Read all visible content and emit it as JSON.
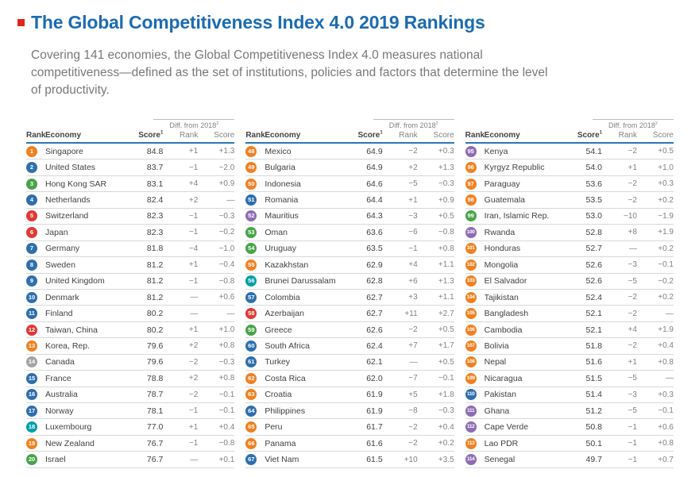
{
  "page": {
    "title": "The Global Competitiveness Index 4.0 2019 Rankings",
    "subtitle": "Covering 141 economies, the Global Competitiveness Index 4.0 measures national competitiveness—defined as the set of institutions, policies and factors that determine the level of productivity.",
    "title_color": "#1c6bb0",
    "logo_color": "#e2231a"
  },
  "table": {
    "diff_label": "Diff. from 2018",
    "diff_sup": "2",
    "columns": {
      "rank": "Rank",
      "economy": "Economy",
      "score": "Score",
      "score_sup": "1",
      "diff_rank": "Rank",
      "diff_score": "Score"
    }
  },
  "region_colors": {
    "blue": "#2e6fad",
    "red": "#df3a35",
    "orange": "#f08122",
    "green": "#4aa349",
    "teal": "#00a0a8",
    "purple": "#8d6cb4",
    "gray": "#a2a4a6"
  },
  "tables": [
    {
      "rows": [
        {
          "rank": "1",
          "economy": "Singapore",
          "score": "84.8",
          "diff_rank": "+1",
          "diff_score": "+1.3",
          "color": "orange"
        },
        {
          "rank": "2",
          "economy": "United States",
          "score": "83.7",
          "diff_rank": "−1",
          "diff_score": "−2.0",
          "color": "blue"
        },
        {
          "rank": "3",
          "economy": "Hong Kong SAR",
          "score": "83.1",
          "diff_rank": "+4",
          "diff_score": "+0.9",
          "color": "green"
        },
        {
          "rank": "4",
          "economy": "Netherlands",
          "score": "82.4",
          "diff_rank": "+2",
          "diff_score": "—",
          "color": "blue"
        },
        {
          "rank": "5",
          "economy": "Switzerland",
          "score": "82.3",
          "diff_rank": "−1",
          "diff_score": "−0.3",
          "color": "red"
        },
        {
          "rank": "6",
          "economy": "Japan",
          "score": "82.3",
          "diff_rank": "−1",
          "diff_score": "−0.2",
          "color": "red"
        },
        {
          "rank": "7",
          "economy": "Germany",
          "score": "81.8",
          "diff_rank": "−4",
          "diff_score": "−1.0",
          "color": "blue"
        },
        {
          "rank": "8",
          "economy": "Sweden",
          "score": "81.2",
          "diff_rank": "+1",
          "diff_score": "−0.4",
          "color": "blue"
        },
        {
          "rank": "9",
          "economy": "United Kingdom",
          "score": "81.2",
          "diff_rank": "−1",
          "diff_score": "−0.8",
          "color": "blue"
        },
        {
          "rank": "10",
          "economy": "Denmark",
          "score": "81.2",
          "diff_rank": "—",
          "diff_score": "+0.6",
          "color": "blue"
        },
        {
          "rank": "11",
          "economy": "Finland",
          "score": "80.2",
          "diff_rank": "—",
          "diff_score": "—",
          "color": "blue"
        },
        {
          "rank": "12",
          "economy": "Taiwan, China",
          "score": "80.2",
          "diff_rank": "+1",
          "diff_score": "+1.0",
          "color": "red"
        },
        {
          "rank": "13",
          "economy": "Korea, Rep.",
          "score": "79.6",
          "diff_rank": "+2",
          "diff_score": "+0.8",
          "color": "orange"
        },
        {
          "rank": "14",
          "economy": "Canada",
          "score": "79.6",
          "diff_rank": "−2",
          "diff_score": "−0.3",
          "color": "gray"
        },
        {
          "rank": "15",
          "economy": "France",
          "score": "78.8",
          "diff_rank": "+2",
          "diff_score": "+0.8",
          "color": "blue"
        },
        {
          "rank": "16",
          "economy": "Australia",
          "score": "78.7",
          "diff_rank": "−2",
          "diff_score": "−0.1",
          "color": "blue"
        },
        {
          "rank": "17",
          "economy": "Norway",
          "score": "78.1",
          "diff_rank": "−1",
          "diff_score": "−0.1",
          "color": "blue"
        },
        {
          "rank": "18",
          "economy": "Luxembourg",
          "score": "77.0",
          "diff_rank": "+1",
          "diff_score": "+0.4",
          "color": "teal"
        },
        {
          "rank": "19",
          "economy": "New Zealand",
          "score": "76.7",
          "diff_rank": "−1",
          "diff_score": "−0.8",
          "color": "orange"
        },
        {
          "rank": "20",
          "economy": "Israel",
          "score": "76.7",
          "diff_rank": "—",
          "diff_score": "+0.1",
          "color": "green"
        }
      ]
    },
    {
      "rows": [
        {
          "rank": "48",
          "economy": "Mexico",
          "score": "64.9",
          "diff_rank": "−2",
          "diff_score": "+0.3",
          "color": "orange"
        },
        {
          "rank": "49",
          "economy": "Bulgaria",
          "score": "64.9",
          "diff_rank": "+2",
          "diff_score": "+1.3",
          "color": "orange"
        },
        {
          "rank": "50",
          "economy": "Indonesia",
          "score": "64.6",
          "diff_rank": "−5",
          "diff_score": "−0.3",
          "color": "orange"
        },
        {
          "rank": "51",
          "economy": "Romania",
          "score": "64.4",
          "diff_rank": "+1",
          "diff_score": "+0.9",
          "color": "blue"
        },
        {
          "rank": "52",
          "economy": "Mauritius",
          "score": "64.3",
          "diff_rank": "−3",
          "diff_score": "+0.5",
          "color": "purple"
        },
        {
          "rank": "53",
          "economy": "Oman",
          "score": "63.6",
          "diff_rank": "−6",
          "diff_score": "−0.8",
          "color": "green"
        },
        {
          "rank": "54",
          "economy": "Uruguay",
          "score": "63.5",
          "diff_rank": "−1",
          "diff_score": "+0.8",
          "color": "green"
        },
        {
          "rank": "55",
          "economy": "Kazakhstan",
          "score": "62.9",
          "diff_rank": "+4",
          "diff_score": "+1.1",
          "color": "orange"
        },
        {
          "rank": "56",
          "economy": "Brunei Darussalam",
          "score": "62.8",
          "diff_rank": "+6",
          "diff_score": "+1.3",
          "color": "teal"
        },
        {
          "rank": "57",
          "economy": "Colombia",
          "score": "62.7",
          "diff_rank": "+3",
          "diff_score": "+1.1",
          "color": "blue"
        },
        {
          "rank": "58",
          "economy": "Azerbaijan",
          "score": "62.7",
          "diff_rank": "+11",
          "diff_score": "+2.7",
          "color": "red"
        },
        {
          "rank": "59",
          "economy": "Greece",
          "score": "62.6",
          "diff_rank": "−2",
          "diff_score": "+0.5",
          "color": "green"
        },
        {
          "rank": "60",
          "economy": "South Africa",
          "score": "62.4",
          "diff_rank": "+7",
          "diff_score": "+1.7",
          "color": "blue"
        },
        {
          "rank": "61",
          "economy": "Turkey",
          "score": "62.1",
          "diff_rank": "—",
          "diff_score": "+0.5",
          "color": "blue"
        },
        {
          "rank": "62",
          "economy": "Costa Rica",
          "score": "62.0",
          "diff_rank": "−7",
          "diff_score": "−0.1",
          "color": "orange"
        },
        {
          "rank": "63",
          "economy": "Croatia",
          "score": "61.9",
          "diff_rank": "+5",
          "diff_score": "+1.8",
          "color": "orange"
        },
        {
          "rank": "64",
          "economy": "Philippines",
          "score": "61.9",
          "diff_rank": "−8",
          "diff_score": "−0.3",
          "color": "blue"
        },
        {
          "rank": "65",
          "economy": "Peru",
          "score": "61.7",
          "diff_rank": "−2",
          "diff_score": "+0.4",
          "color": "orange"
        },
        {
          "rank": "66",
          "economy": "Panama",
          "score": "61.6",
          "diff_rank": "−2",
          "diff_score": "+0.2",
          "color": "orange"
        },
        {
          "rank": "67",
          "economy": "Viet Nam",
          "score": "61.5",
          "diff_rank": "+10",
          "diff_score": "+3.5",
          "color": "blue"
        }
      ]
    },
    {
      "rows": [
        {
          "rank": "95",
          "economy": "Kenya",
          "score": "54.1",
          "diff_rank": "−2",
          "diff_score": "+0.5",
          "color": "purple"
        },
        {
          "rank": "96",
          "economy": "Kyrgyz Republic",
          "score": "54.0",
          "diff_rank": "+1",
          "diff_score": "+1.0",
          "color": "orange"
        },
        {
          "rank": "97",
          "economy": "Paraguay",
          "score": "53.6",
          "diff_rank": "−2",
          "diff_score": "+0.3",
          "color": "orange"
        },
        {
          "rank": "98",
          "economy": "Guatemala",
          "score": "53.5",
          "diff_rank": "−2",
          "diff_score": "+0.2",
          "color": "orange"
        },
        {
          "rank": "99",
          "economy": "Iran, Islamic Rep.",
          "score": "53.0",
          "diff_rank": "−10",
          "diff_score": "−1.9",
          "color": "green"
        },
        {
          "rank": "100",
          "economy": "Rwanda",
          "score": "52.8",
          "diff_rank": "+8",
          "diff_score": "+1.9",
          "color": "purple"
        },
        {
          "rank": "101",
          "economy": "Honduras",
          "score": "52.7",
          "diff_rank": "—",
          "diff_score": "+0.2",
          "color": "orange"
        },
        {
          "rank": "102",
          "economy": "Mongolia",
          "score": "52.6",
          "diff_rank": "−3",
          "diff_score": "−0.1",
          "color": "orange"
        },
        {
          "rank": "103",
          "economy": "El Salvador",
          "score": "52.6",
          "diff_rank": "−5",
          "diff_score": "−0.2",
          "color": "orange"
        },
        {
          "rank": "104",
          "economy": "Tajikistan",
          "score": "52.4",
          "diff_rank": "−2",
          "diff_score": "+0.2",
          "color": "orange"
        },
        {
          "rank": "105",
          "economy": "Bangladesh",
          "score": "52.1",
          "diff_rank": "−2",
          "diff_score": "—",
          "color": "orange"
        },
        {
          "rank": "106",
          "economy": "Cambodia",
          "score": "52.1",
          "diff_rank": "+4",
          "diff_score": "+1.9",
          "color": "orange"
        },
        {
          "rank": "107",
          "economy": "Bolivia",
          "score": "51.8",
          "diff_rank": "−2",
          "diff_score": "+0.4",
          "color": "orange"
        },
        {
          "rank": "108",
          "economy": "Nepal",
          "score": "51.6",
          "diff_rank": "+1",
          "diff_score": "+0.8",
          "color": "orange"
        },
        {
          "rank": "109",
          "economy": "Nicaragua",
          "score": "51.5",
          "diff_rank": "−5",
          "diff_score": "—",
          "color": "orange"
        },
        {
          "rank": "110",
          "economy": "Pakistan",
          "score": "51.4",
          "diff_rank": "−3",
          "diff_score": "+0.3",
          "color": "blue"
        },
        {
          "rank": "111",
          "economy": "Ghana",
          "score": "51.2",
          "diff_rank": "−5",
          "diff_score": "−0.1",
          "color": "purple"
        },
        {
          "rank": "112",
          "economy": "Cape Verde",
          "score": "50.8",
          "diff_rank": "−1",
          "diff_score": "+0.6",
          "color": "purple"
        },
        {
          "rank": "113",
          "economy": "Lao PDR",
          "score": "50.1",
          "diff_rank": "−1",
          "diff_score": "+0.8",
          "color": "orange"
        },
        {
          "rank": "114",
          "economy": "Senegal",
          "score": "49.7",
          "diff_rank": "−1",
          "diff_score": "+0.7",
          "color": "purple"
        }
      ]
    }
  ]
}
